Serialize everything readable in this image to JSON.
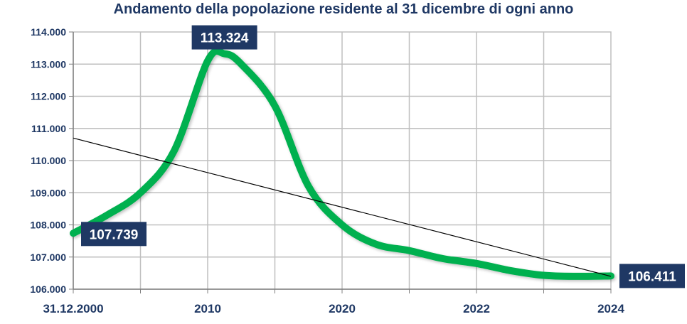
{
  "chart_data": {
    "type": "line",
    "title": "Andamento della popolazione residente al 31 dicembre di ogni anno",
    "xlabel": "",
    "ylabel": "",
    "x_tick_labels": [
      "31.12.2000",
      "",
      "2010",
      "",
      "2020",
      "",
      "2022",
      "",
      "2024"
    ],
    "y_tick_labels": [
      "106.000",
      "107.000",
      "108.000",
      "109.000",
      "110.000",
      "111.000",
      "112.000",
      "113.000",
      "114.000"
    ],
    "ylim": [
      106000,
      114000
    ],
    "grid": true,
    "legend": "none",
    "series": [
      {
        "color": "#00b050",
        "points": [
          {
            "x": 0,
            "y": 107739
          },
          {
            "x": 0.5,
            "y": 108300
          },
          {
            "x": 1,
            "y": 109000
          },
          {
            "x": 1.5,
            "y": 110300
          },
          {
            "x": 2,
            "y": 113100
          },
          {
            "x": 2.25,
            "y": 113324
          },
          {
            "x": 2.5,
            "y": 113000
          },
          {
            "x": 3,
            "y": 111700
          },
          {
            "x": 3.5,
            "y": 109200
          },
          {
            "x": 4,
            "y": 108000
          },
          {
            "x": 4.5,
            "y": 107400
          },
          {
            "x": 5,
            "y": 107200
          },
          {
            "x": 5.5,
            "y": 106950
          },
          {
            "x": 6,
            "y": 106800
          },
          {
            "x": 6.5,
            "y": 106580
          },
          {
            "x": 7,
            "y": 106430
          },
          {
            "x": 7.5,
            "y": 106400
          },
          {
            "x": 8,
            "y": 106411
          }
        ]
      }
    ],
    "trendline": {
      "color": "#000000",
      "start": {
        "x": 0,
        "y": 110700
      },
      "end": {
        "x": 8,
        "y": 106400
      }
    },
    "data_labels": [
      {
        "text": "107.739",
        "x": 0,
        "y": 107739,
        "anchor": "below-right"
      },
      {
        "text": "113.324",
        "x": 2.25,
        "y": 113324,
        "anchor": "above"
      },
      {
        "text": "106.411",
        "x": 8,
        "y": 106411,
        "anchor": "right"
      }
    ],
    "colors": {
      "line": "#00b050",
      "label_bg": "#1f3864",
      "text": "#1f3864",
      "grid": "#bfbfbf"
    }
  }
}
